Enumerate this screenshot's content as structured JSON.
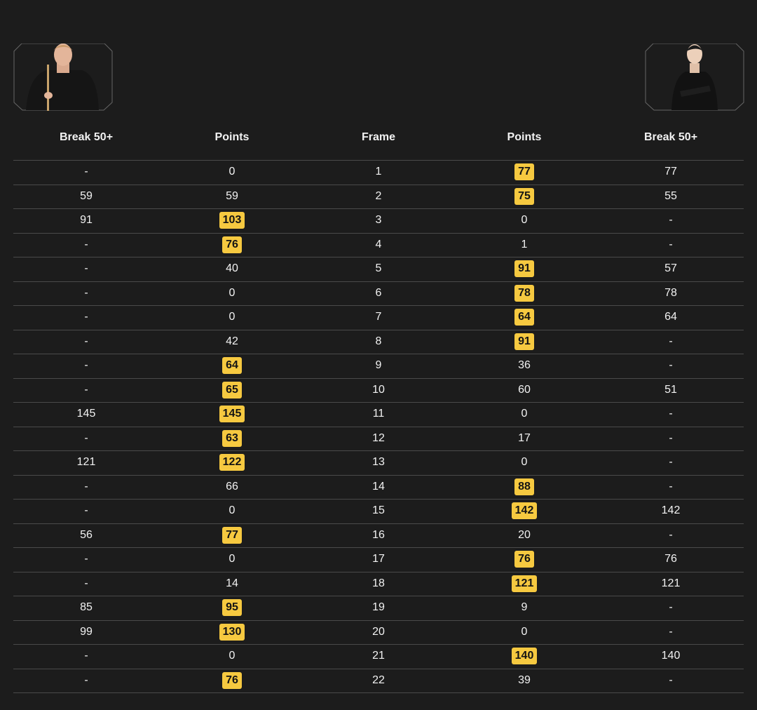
{
  "table": {
    "header": [
      "Break 50+",
      "Points",
      "Frame",
      "Points",
      "Break 50+"
    ],
    "rows": [
      [
        "-",
        0,
        1,
        77,
        77
      ],
      [
        59,
        59,
        2,
        75,
        55
      ],
      [
        91,
        103,
        3,
        0,
        "-"
      ],
      [
        "-",
        76,
        4,
        1,
        "-"
      ],
      [
        "-",
        40,
        5,
        91,
        57
      ],
      [
        "-",
        0,
        6,
        78,
        78
      ],
      [
        "-",
        0,
        7,
        64,
        64
      ],
      [
        "-",
        42,
        8,
        91,
        "-"
      ],
      [
        "-",
        64,
        9,
        36,
        "-"
      ],
      [
        "-",
        65,
        10,
        60,
        51
      ],
      [
        145,
        145,
        11,
        0,
        "-"
      ],
      [
        "-",
        63,
        12,
        17,
        "-"
      ],
      [
        121,
        122,
        13,
        0,
        "-"
      ],
      [
        "-",
        66,
        14,
        88,
        "-"
      ],
      [
        "-",
        0,
        15,
        142,
        142
      ],
      [
        56,
        77,
        16,
        20,
        "-"
      ],
      [
        "-",
        0,
        17,
        76,
        76
      ],
      [
        "-",
        14,
        18,
        121,
        121
      ],
      [
        85,
        95,
        19,
        9,
        "-"
      ],
      [
        99,
        130,
        20,
        0,
        "-"
      ],
      [
        "-",
        0,
        21,
        140,
        140
      ],
      [
        "-",
        76,
        22,
        39,
        "-"
      ]
    ]
  }
}
